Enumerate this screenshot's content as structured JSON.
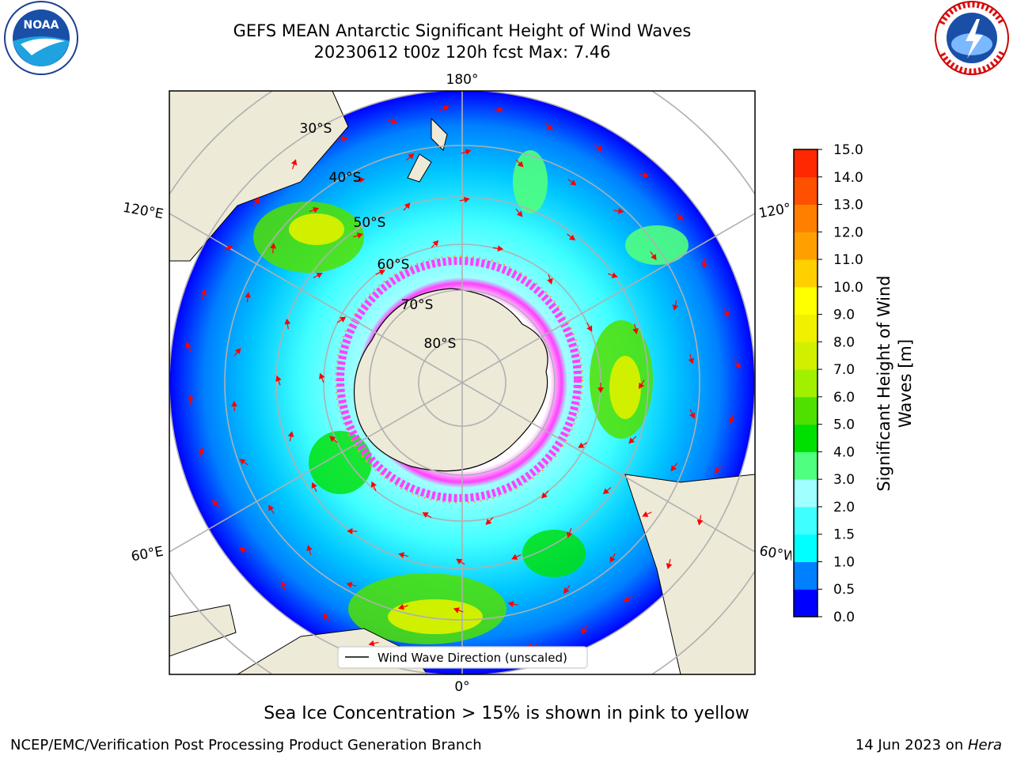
{
  "header": {
    "title_line1": "GEFS MEAN Antarctic Significant Height of Wind Waves",
    "title_line2": "20230612 t00z 120h fcst   Max: 7.46"
  },
  "logos": {
    "left": "NOAA",
    "left_ring_text": "NATIONAL OCEANIC AND ATMOSPHERIC ADMINISTRATION · U.S. DEPARTMENT OF COMMERCE",
    "right_ring_text": "NATIONAL WEATHER SERVICE"
  },
  "map": {
    "lon_labels": {
      "top": "180°",
      "bottom": "0°",
      "upper_left": "120°E",
      "lower_left": "60°E",
      "upper_right": "120°",
      "lower_right": "60°W"
    },
    "lat_labels": [
      "30°S",
      "40°S",
      "50°S",
      "60°S",
      "70°S",
      "80°S"
    ],
    "legend_label": "Wind Wave Direction (unscaled)",
    "colors": {
      "land": "#eeead8",
      "ocean_low": "#0000ff",
      "arrow": "#ff0000",
      "ice_edge": "#ff40ff"
    }
  },
  "colorbar": {
    "label_line1": "Significant Height of Wind",
    "label_line2": "Waves [m]",
    "ticks": [
      "0.0",
      "0.5",
      "1.0",
      "1.5",
      "2.0",
      "3.0",
      "4.0",
      "5.0",
      "6.0",
      "7.0",
      "8.0",
      "9.0",
      "10.0",
      "11.0",
      "12.0",
      "13.0",
      "14.0",
      "15.0"
    ],
    "colors": [
      "#0000ff",
      "#0080ff",
      "#00ffff",
      "#40ffff",
      "#a0ffff",
      "#50ff80",
      "#00e000",
      "#50e000",
      "#a0f000",
      "#d0f000",
      "#f0f000",
      "#ffff00",
      "#ffd000",
      "#ffa000",
      "#ff8000",
      "#ff5000",
      "#ff2800"
    ]
  },
  "footer": {
    "note": "Sea Ice Concentration > 15% is shown in pink to yellow",
    "credit": "NCEP/EMC/Verification Post Processing Product Generation Branch",
    "date_prefix": "14 Jun 2023 on ",
    "date_machine": "Hera"
  }
}
